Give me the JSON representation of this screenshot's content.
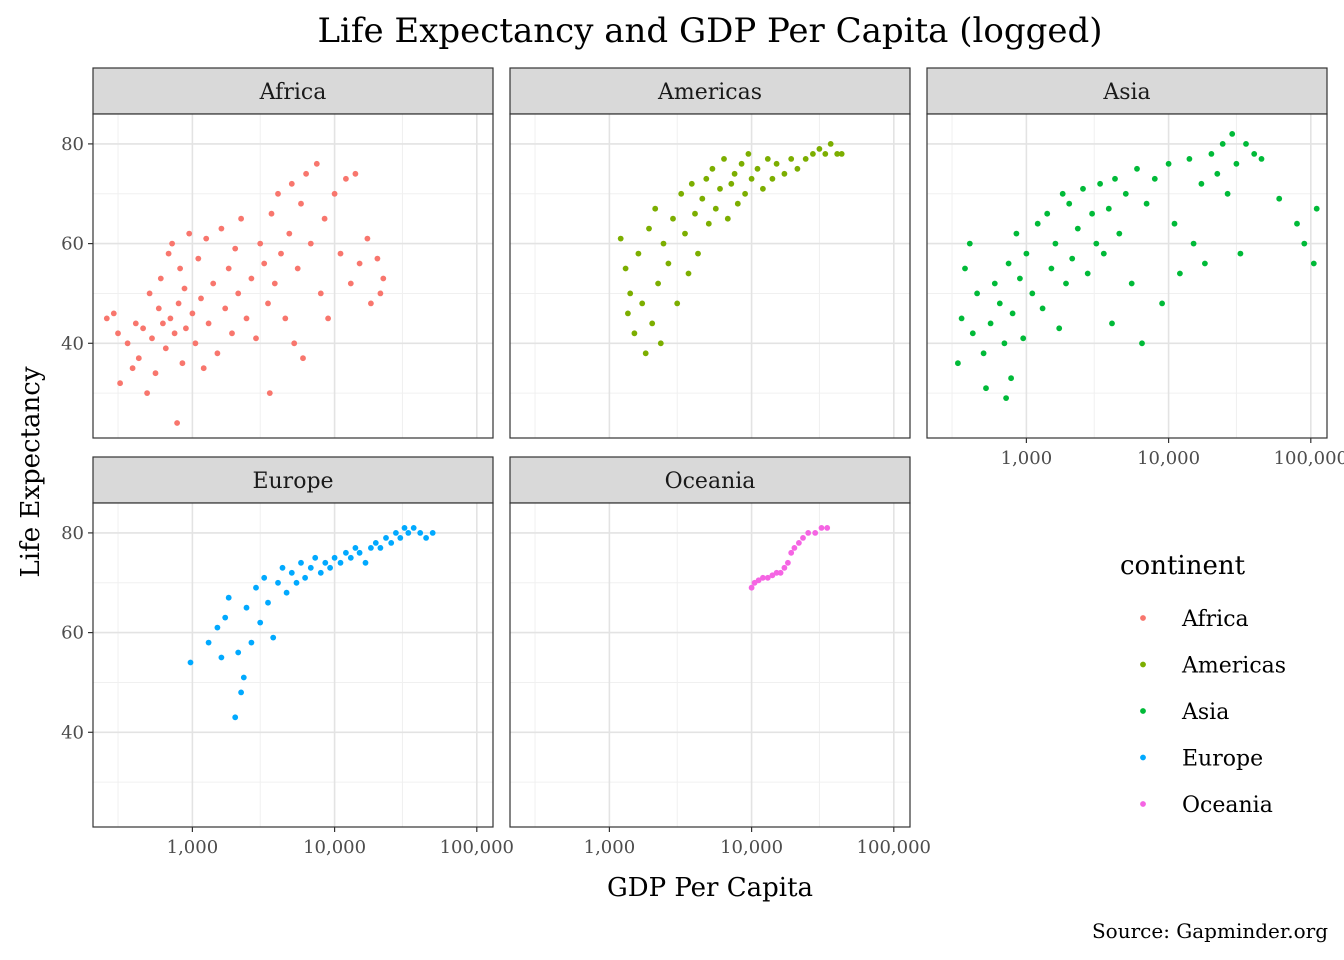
{
  "chart_data": {
    "type": "scatter",
    "title": "Life Expectancy and GDP Per Capita (logged)",
    "xlabel": "GDP Per Capita",
    "ylabel": "Life Expectancy",
    "caption": "Source: Gapminder.org",
    "x_scale": "log10",
    "xlim": [
      200,
      130000
    ],
    "ylim": [
      21,
      86
    ],
    "x_ticks": [
      1000,
      10000,
      100000
    ],
    "x_tick_labels": [
      "1,000",
      "10,000",
      "100,000"
    ],
    "y_ticks": [
      40,
      60,
      80
    ],
    "y_tick_labels": [
      "40",
      "60",
      "80"
    ],
    "grid": true,
    "legend": {
      "title": "continent",
      "placement": "right"
    },
    "facets": [
      {
        "name": "Africa",
        "color": "#F8766D",
        "points": [
          [
            250,
            45
          ],
          [
            280,
            46
          ],
          [
            300,
            42
          ],
          [
            310,
            32
          ],
          [
            350,
            40
          ],
          [
            380,
            35
          ],
          [
            400,
            44
          ],
          [
            420,
            37
          ],
          [
            450,
            43
          ],
          [
            480,
            30
          ],
          [
            500,
            50
          ],
          [
            520,
            41
          ],
          [
            550,
            34
          ],
          [
            580,
            47
          ],
          [
            600,
            53
          ],
          [
            620,
            44
          ],
          [
            650,
            39
          ],
          [
            680,
            58
          ],
          [
            700,
            45
          ],
          [
            720,
            60
          ],
          [
            750,
            42
          ],
          [
            780,
            24
          ],
          [
            800,
            48
          ],
          [
            820,
            55
          ],
          [
            850,
            36
          ],
          [
            880,
            51
          ],
          [
            900,
            43
          ],
          [
            950,
            62
          ],
          [
            1000,
            46
          ],
          [
            1050,
            40
          ],
          [
            1100,
            57
          ],
          [
            1150,
            49
          ],
          [
            1200,
            35
          ],
          [
            1250,
            61
          ],
          [
            1300,
            44
          ],
          [
            1400,
            52
          ],
          [
            1500,
            38
          ],
          [
            1600,
            63
          ],
          [
            1700,
            47
          ],
          [
            1800,
            55
          ],
          [
            1900,
            42
          ],
          [
            2000,
            59
          ],
          [
            2100,
            50
          ],
          [
            2200,
            65
          ],
          [
            2400,
            45
          ],
          [
            2600,
            53
          ],
          [
            2800,
            41
          ],
          [
            3000,
            60
          ],
          [
            3200,
            56
          ],
          [
            3400,
            48
          ],
          [
            3500,
            30
          ],
          [
            3600,
            66
          ],
          [
            3800,
            52
          ],
          [
            4000,
            70
          ],
          [
            4200,
            58
          ],
          [
            4500,
            45
          ],
          [
            4800,
            62
          ],
          [
            5000,
            72
          ],
          [
            5200,
            40
          ],
          [
            5500,
            55
          ],
          [
            5800,
            68
          ],
          [
            6000,
            37
          ],
          [
            6300,
            74
          ],
          [
            6800,
            60
          ],
          [
            7500,
            76
          ],
          [
            8000,
            50
          ],
          [
            8500,
            65
          ],
          [
            9000,
            45
          ],
          [
            10000,
            70
          ],
          [
            11000,
            58
          ],
          [
            12000,
            73
          ],
          [
            13000,
            52
          ],
          [
            14000,
            74
          ],
          [
            15000,
            56
          ],
          [
            17000,
            61
          ],
          [
            18000,
            48
          ],
          [
            20000,
            57
          ],
          [
            21000,
            50
          ],
          [
            22000,
            53
          ]
        ]
      },
      {
        "name": "Americas",
        "color": "#7CAE00",
        "points": [
          [
            1200,
            61
          ],
          [
            1300,
            55
          ],
          [
            1350,
            46
          ],
          [
            1400,
            50
          ],
          [
            1500,
            42
          ],
          [
            1600,
            58
          ],
          [
            1700,
            48
          ],
          [
            1800,
            38
          ],
          [
            1900,
            63
          ],
          [
            2000,
            44
          ],
          [
            2100,
            67
          ],
          [
            2200,
            52
          ],
          [
            2300,
            40
          ],
          [
            2400,
            60
          ],
          [
            2600,
            56
          ],
          [
            2800,
            65
          ],
          [
            3000,
            48
          ],
          [
            3200,
            70
          ],
          [
            3400,
            62
          ],
          [
            3600,
            54
          ],
          [
            3800,
            72
          ],
          [
            4000,
            66
          ],
          [
            4200,
            58
          ],
          [
            4500,
            69
          ],
          [
            4800,
            73
          ],
          [
            5000,
            64
          ],
          [
            5300,
            75
          ],
          [
            5600,
            67
          ],
          [
            6000,
            71
          ],
          [
            6400,
            77
          ],
          [
            6800,
            65
          ],
          [
            7200,
            72
          ],
          [
            7600,
            74
          ],
          [
            8000,
            68
          ],
          [
            8500,
            76
          ],
          [
            9000,
            70
          ],
          [
            9500,
            78
          ],
          [
            10000,
            73
          ],
          [
            11000,
            75
          ],
          [
            12000,
            71
          ],
          [
            13000,
            77
          ],
          [
            14000,
            73
          ],
          [
            15000,
            76
          ],
          [
            17000,
            74
          ],
          [
            19000,
            77
          ],
          [
            21000,
            75
          ],
          [
            24000,
            77
          ],
          [
            27000,
            78
          ],
          [
            30000,
            79
          ],
          [
            33000,
            78
          ],
          [
            36000,
            80
          ],
          [
            40000,
            78
          ],
          [
            43000,
            78
          ]
        ]
      },
      {
        "name": "Asia",
        "color": "#00BA38",
        "points": [
          [
            330,
            36
          ],
          [
            350,
            45
          ],
          [
            370,
            55
          ],
          [
            400,
            60
          ],
          [
            420,
            42
          ],
          [
            450,
            50
          ],
          [
            500,
            38
          ],
          [
            520,
            31
          ],
          [
            560,
            44
          ],
          [
            600,
            52
          ],
          [
            650,
            48
          ],
          [
            700,
            40
          ],
          [
            720,
            29
          ],
          [
            750,
            56
          ],
          [
            780,
            33
          ],
          [
            800,
            46
          ],
          [
            850,
            62
          ],
          [
            900,
            53
          ],
          [
            950,
            41
          ],
          [
            1000,
            58
          ],
          [
            1100,
            50
          ],
          [
            1200,
            64
          ],
          [
            1300,
            47
          ],
          [
            1400,
            66
          ],
          [
            1500,
            55
          ],
          [
            1600,
            60
          ],
          [
            1700,
            43
          ],
          [
            1800,
            70
          ],
          [
            1900,
            52
          ],
          [
            2000,
            68
          ],
          [
            2100,
            57
          ],
          [
            2300,
            63
          ],
          [
            2500,
            71
          ],
          [
            2700,
            54
          ],
          [
            2900,
            66
          ],
          [
            3100,
            60
          ],
          [
            3300,
            72
          ],
          [
            3500,
            58
          ],
          [
            3800,
            67
          ],
          [
            4000,
            44
          ],
          [
            4200,
            73
          ],
          [
            4500,
            62
          ],
          [
            5000,
            70
          ],
          [
            5500,
            52
          ],
          [
            6000,
            75
          ],
          [
            6500,
            40
          ],
          [
            7000,
            68
          ],
          [
            8000,
            73
          ],
          [
            9000,
            48
          ],
          [
            10000,
            76
          ],
          [
            11000,
            64
          ],
          [
            12000,
            54
          ],
          [
            14000,
            77
          ],
          [
            15000,
            60
          ],
          [
            17000,
            72
          ],
          [
            18000,
            56
          ],
          [
            20000,
            78
          ],
          [
            22000,
            74
          ],
          [
            24000,
            80
          ],
          [
            26000,
            70
          ],
          [
            28000,
            82
          ],
          [
            30000,
            76
          ],
          [
            32000,
            58
          ],
          [
            35000,
            80
          ],
          [
            40000,
            78
          ],
          [
            45000,
            77
          ],
          [
            60000,
            69
          ],
          [
            80000,
            64
          ],
          [
            90000,
            60
          ],
          [
            105000,
            56
          ],
          [
            110000,
            67
          ]
        ]
      },
      {
        "name": "Europe",
        "color": "#00A9FF",
        "points": [
          [
            970,
            54
          ],
          [
            1300,
            58
          ],
          [
            1500,
            61
          ],
          [
            1600,
            55
          ],
          [
            1700,
            63
          ],
          [
            1800,
            67
          ],
          [
            2000,
            43
          ],
          [
            2100,
            56
          ],
          [
            2200,
            48
          ],
          [
            2300,
            51
          ],
          [
            2400,
            65
          ],
          [
            2600,
            58
          ],
          [
            2800,
            69
          ],
          [
            3000,
            62
          ],
          [
            3200,
            71
          ],
          [
            3400,
            66
          ],
          [
            3700,
            59
          ],
          [
            4000,
            70
          ],
          [
            4300,
            73
          ],
          [
            4600,
            68
          ],
          [
            5000,
            72
          ],
          [
            5400,
            70
          ],
          [
            5800,
            74
          ],
          [
            6200,
            71
          ],
          [
            6800,
            73
          ],
          [
            7300,
            75
          ],
          [
            8000,
            72
          ],
          [
            8600,
            74
          ],
          [
            9300,
            73
          ],
          [
            10000,
            75
          ],
          [
            11000,
            74
          ],
          [
            12000,
            76
          ],
          [
            13000,
            75
          ],
          [
            14000,
            77
          ],
          [
            15000,
            76
          ],
          [
            16500,
            74
          ],
          [
            18000,
            77
          ],
          [
            19500,
            78
          ],
          [
            21000,
            77
          ],
          [
            23000,
            79
          ],
          [
            25000,
            78
          ],
          [
            27000,
            80
          ],
          [
            29000,
            79
          ],
          [
            31000,
            81
          ],
          [
            33000,
            80
          ],
          [
            36000,
            81
          ],
          [
            40000,
            80
          ],
          [
            44000,
            79
          ],
          [
            49000,
            80
          ]
        ]
      },
      {
        "name": "Oceania",
        "color": "#F564E3",
        "points": [
          [
            10000,
            69
          ],
          [
            10500,
            70
          ],
          [
            11200,
            70.5
          ],
          [
            12000,
            71
          ],
          [
            13000,
            71
          ],
          [
            14000,
            71.5
          ],
          [
            15000,
            72
          ],
          [
            16000,
            72
          ],
          [
            17000,
            73
          ],
          [
            18000,
            74
          ],
          [
            19000,
            76
          ],
          [
            20000,
            77
          ],
          [
            21500,
            78
          ],
          [
            23000,
            79
          ],
          [
            25000,
            80
          ],
          [
            28000,
            80
          ],
          [
            31000,
            81
          ],
          [
            34000,
            81
          ]
        ]
      }
    ]
  }
}
